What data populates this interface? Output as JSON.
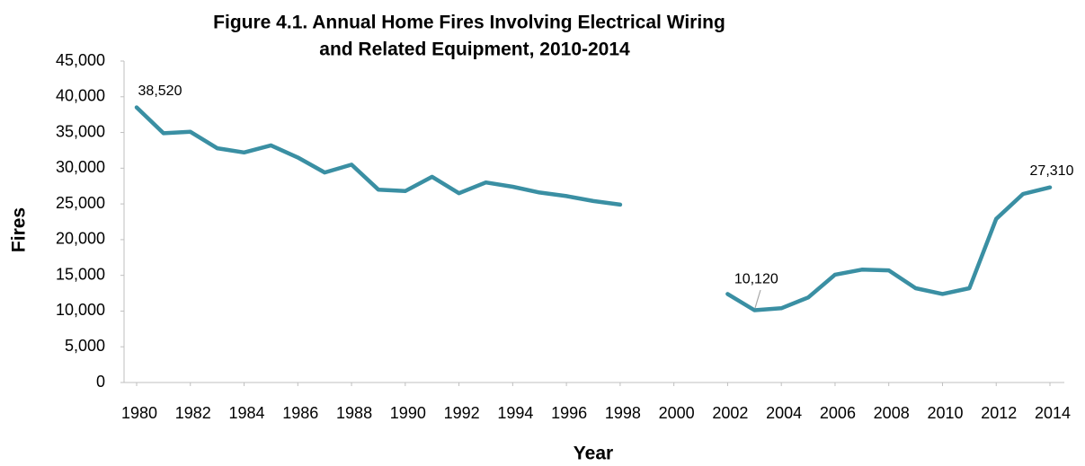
{
  "chart_data": {
    "type": "line",
    "title": [
      "Figure 4.1. Annual Home Fires Involving Electrical Wiring",
      "and Related Equipment, 2010-2014"
    ],
    "x_label": "Year",
    "y_label": "Fires",
    "x": [
      1980,
      1981,
      1982,
      1983,
      1984,
      1985,
      1986,
      1987,
      1988,
      1989,
      1990,
      1991,
      1992,
      1993,
      1994,
      1995,
      1996,
      1997,
      1998,
      1999,
      2000,
      2001,
      2002,
      2003,
      2004,
      2005,
      2006,
      2007,
      2008,
      2009,
      2010,
      2011,
      2012,
      2013,
      2014
    ],
    "values": [
      38520,
      34900,
      35100,
      32800,
      32200,
      33200,
      31500,
      29400,
      30500,
      27000,
      26800,
      28800,
      26500,
      28000,
      27400,
      26600,
      26100,
      25400,
      24900,
      null,
      null,
      null,
      12400,
      10120,
      10400,
      11900,
      15100,
      15800,
      15700,
      13200,
      12400,
      13200,
      22900,
      26400,
      27310
    ],
    "value_labels": [
      "38,520",
      null,
      null,
      null,
      null,
      null,
      null,
      null,
      null,
      null,
      null,
      null,
      null,
      null,
      null,
      null,
      null,
      null,
      null,
      null,
      null,
      null,
      null,
      "10,120",
      null,
      null,
      null,
      null,
      null,
      null,
      null,
      null,
      null,
      null,
      "27,310"
    ],
    "color": "#3a8fa3",
    "xlim": [
      1980,
      2014
    ],
    "xticks": [
      1980,
      1982,
      1984,
      1986,
      1988,
      1990,
      1992,
      1994,
      1996,
      1998,
      2000,
      2002,
      2004,
      2006,
      2008,
      2010,
      2012,
      2014
    ],
    "ylim": [
      0,
      45000
    ],
    "yticks": [
      0,
      {
        "value": 5000,
        "label": "5,000"
      },
      {
        "value": 10000,
        "label": "10,000"
      },
      {
        "value": 15000,
        "label": "15,000"
      },
      {
        "value": 20000,
        "label": "20,000"
      },
      {
        "value": 25000,
        "label": "25,000"
      },
      {
        "value": 30000,
        "label": "30,000"
      },
      {
        "value": 35000,
        "label": "35,000"
      },
      {
        "value": 40000,
        "label": "40,000"
      },
      {
        "value": 45000,
        "label": "45,000"
      }
    ],
    "grid": false
  }
}
